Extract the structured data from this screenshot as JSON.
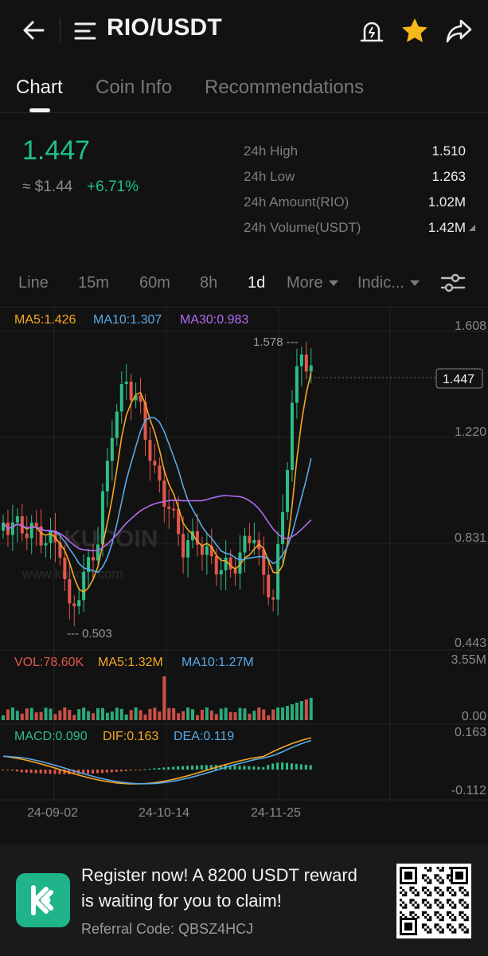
{
  "header": {
    "pair": "RIO/USDT"
  },
  "tabs": [
    {
      "label": "Chart",
      "active": true
    },
    {
      "label": "Coin Info",
      "active": false
    },
    {
      "label": "Recommendations",
      "active": false
    }
  ],
  "ticker": {
    "price": "1.447",
    "usd_value": "≈ $1.44",
    "change": "+6.71%",
    "stats": [
      {
        "label": "24h High",
        "value": "1.510"
      },
      {
        "label": "24h Low",
        "value": "1.263"
      },
      {
        "label": "24h Amount(RIO)",
        "value": "1.02M"
      },
      {
        "label": "24h Volume(USDT)",
        "value": "1.42M"
      }
    ]
  },
  "intervals": [
    {
      "label": "Line",
      "active": false
    },
    {
      "label": "15m",
      "active": false
    },
    {
      "label": "60m",
      "active": false
    },
    {
      "label": "8h",
      "active": false
    },
    {
      "label": "1d",
      "active": true
    },
    {
      "label": "More",
      "active": false
    },
    {
      "label": "Indic...",
      "active": false
    }
  ],
  "chart": {
    "ma_legend": {
      "ma5": "MA5:1.426",
      "ma10": "MA10:1.307",
      "ma30": "MA30:0.983"
    },
    "price_axis": [
      "1.608",
      "1.220",
      "0.831",
      "0.443"
    ],
    "current_price_label": "1.447",
    "high_marker": "1.578 ---",
    "low_marker": "--- 0.503",
    "watermark_brand": "KUCOIN",
    "watermark_url": "www.kucoin.com",
    "vol_legend": {
      "vol": "VOL:78.60K",
      "ma5": "MA5:1.32M",
      "ma10": "MA10:1.27M"
    },
    "vol_axis": [
      "3.55M",
      "0.00"
    ],
    "macd_legend": {
      "macd": "MACD:0.090",
      "dif": "DIF:0.163",
      "dea": "DEA:0.119"
    },
    "macd_axis": [
      "0.163",
      "-0.112"
    ],
    "dates": [
      "24-09-02",
      "24-10-14",
      "24-11-25"
    ],
    "colors": {
      "up": "#2ebd85",
      "down": "#e2574c",
      "ma5": "#f5a623",
      "ma10": "#5aa9e6",
      "ma30": "#b36bf0"
    }
  },
  "banner": {
    "line1": "Register now! A 8200 USDT reward",
    "line2": "is waiting for you to claim!",
    "referral": "Referral Code: QBSZ4HCJ"
  }
}
